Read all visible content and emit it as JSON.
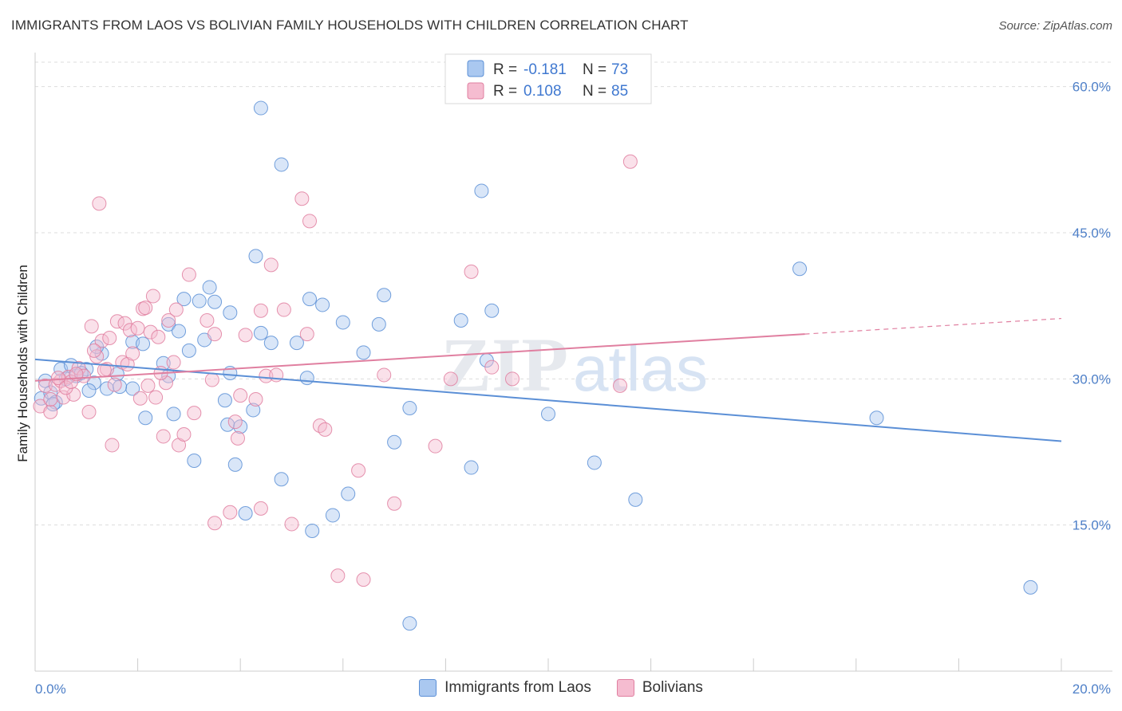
{
  "title": "IMMIGRANTS FROM LAOS VS BOLIVIAN FAMILY HOUSEHOLDS WITH CHILDREN CORRELATION CHART",
  "source": "Source: ZipAtlas.com",
  "watermark": {
    "zip": "ZIP",
    "atlas": "atlas"
  },
  "legend": {
    "r_label": "R =",
    "n_label": "N =",
    "rows": [
      {
        "r": "-0.181",
        "n": "73",
        "fill": "#aac8f0",
        "stroke": "#5b8fd6"
      },
      {
        "r": "0.108",
        "n": "85",
        "fill": "#f5bcd0",
        "stroke": "#e07fa0"
      }
    ]
  },
  "bottom_legend": [
    {
      "label": "Immigrants from Laos",
      "fill": "#aac8f0",
      "stroke": "#5b8fd6"
    },
    {
      "label": "Bolivians",
      "fill": "#f5bcd0",
      "stroke": "#e07fa0"
    }
  ],
  "chart_data": {
    "type": "scatter",
    "title": "IMMIGRANTS FROM LAOS VS BOLIVIAN FAMILY HOUSEHOLDS WITH CHILDREN CORRELATION CHART",
    "xlabel": "",
    "ylabel": "Family Households with Children",
    "xlim": [
      0,
      20
    ],
    "ylim": [
      0,
      63
    ],
    "x_tick_labels": [
      "0.0%",
      "20.0%"
    ],
    "y_ticks": [
      15,
      30,
      45,
      60
    ],
    "y_tick_labels": [
      "15.0%",
      "30.0%",
      "45.0%",
      "60.0%"
    ],
    "series": [
      {
        "name": "Immigrants from Laos",
        "color": "#5b8fd6",
        "fill": "#aac8f0",
        "trend": {
          "x": [
            0,
            20
          ],
          "y": [
            32.0,
            23.6
          ]
        },
        "points": [
          [
            0.12,
            28.0
          ],
          [
            0.2,
            29.8
          ],
          [
            0.3,
            28.6
          ],
          [
            0.4,
            27.6
          ],
          [
            0.5,
            31.0
          ],
          [
            0.6,
            30.0
          ],
          [
            0.7,
            31.4
          ],
          [
            0.8,
            30.3
          ],
          [
            1.0,
            31.0
          ],
          [
            1.15,
            29.6
          ],
          [
            1.3,
            32.6
          ],
          [
            1.4,
            29.0
          ],
          [
            1.6,
            30.5
          ],
          [
            1.9,
            29.0
          ],
          [
            1.05,
            28.8
          ],
          [
            1.2,
            33.3
          ],
          [
            1.9,
            33.8
          ],
          [
            2.1,
            33.6
          ],
          [
            2.15,
            26.0
          ],
          [
            2.5,
            31.6
          ],
          [
            2.6,
            30.3
          ],
          [
            2.6,
            35.6
          ],
          [
            2.7,
            26.4
          ],
          [
            2.8,
            34.9
          ],
          [
            2.9,
            38.2
          ],
          [
            3.0,
            32.9
          ],
          [
            3.1,
            21.6
          ],
          [
            3.2,
            38.0
          ],
          [
            3.4,
            39.4
          ],
          [
            3.5,
            37.9
          ],
          [
            3.7,
            27.8
          ],
          [
            3.75,
            25.3
          ],
          [
            3.8,
            30.6
          ],
          [
            3.9,
            21.2
          ],
          [
            3.8,
            36.8
          ],
          [
            4.0,
            25.1
          ],
          [
            4.1,
            16.2
          ],
          [
            4.4,
            34.7
          ],
          [
            4.3,
            42.6
          ],
          [
            4.25,
            26.8
          ],
          [
            4.4,
            57.8
          ],
          [
            4.6,
            33.7
          ],
          [
            4.8,
            19.7
          ],
          [
            4.8,
            52.0
          ],
          [
            5.1,
            33.7
          ],
          [
            5.3,
            30.1
          ],
          [
            5.35,
            38.2
          ],
          [
            5.4,
            14.4
          ],
          [
            5.6,
            37.6
          ],
          [
            5.8,
            16.0
          ],
          [
            6.0,
            35.8
          ],
          [
            6.1,
            18.2
          ],
          [
            6.4,
            32.7
          ],
          [
            6.7,
            35.6
          ],
          [
            6.8,
            38.6
          ],
          [
            7.0,
            23.5
          ],
          [
            7.3,
            27.0
          ],
          [
            7.3,
            4.9
          ],
          [
            8.3,
            36.0
          ],
          [
            8.5,
            20.9
          ],
          [
            8.7,
            49.3
          ],
          [
            8.8,
            31.9
          ],
          [
            8.9,
            37.0
          ],
          [
            10.0,
            26.4
          ],
          [
            10.9,
            21.4
          ],
          [
            11.7,
            17.6
          ],
          [
            14.9,
            41.3
          ],
          [
            16.4,
            26.0
          ],
          [
            19.4,
            8.6
          ],
          [
            3.3,
            34.0
          ],
          [
            0.35,
            27.4
          ],
          [
            1.65,
            29.2
          ],
          [
            0.9,
            30.6
          ]
        ]
      },
      {
        "name": "Bolivians",
        "color": "#e07fa0",
        "fill": "#f5bcd0",
        "trend": {
          "x": [
            0,
            15
          ],
          "y": [
            29.8,
            34.6
          ],
          "dash_to": {
            "x": 20,
            "y": 36.2
          }
        },
        "points": [
          [
            0.1,
            27.2
          ],
          [
            0.2,
            29.3
          ],
          [
            0.3,
            26.6
          ],
          [
            0.4,
            29.4
          ],
          [
            0.5,
            29.8
          ],
          [
            0.55,
            28.1
          ],
          [
            0.65,
            30.2
          ],
          [
            0.75,
            28.4
          ],
          [
            0.85,
            31.1
          ],
          [
            0.95,
            30.3
          ],
          [
            1.05,
            26.6
          ],
          [
            1.1,
            35.4
          ],
          [
            1.2,
            32.3
          ],
          [
            1.25,
            48.0
          ],
          [
            1.3,
            33.9
          ],
          [
            1.4,
            31.0
          ],
          [
            1.45,
            34.2
          ],
          [
            1.5,
            23.2
          ],
          [
            1.55,
            29.4
          ],
          [
            1.6,
            35.9
          ],
          [
            1.7,
            31.7
          ],
          [
            1.75,
            35.7
          ],
          [
            1.8,
            31.5
          ],
          [
            1.85,
            35.0
          ],
          [
            1.9,
            32.6
          ],
          [
            2.0,
            35.2
          ],
          [
            2.05,
            28.0
          ],
          [
            2.1,
            37.2
          ],
          [
            2.15,
            37.3
          ],
          [
            2.2,
            29.3
          ],
          [
            2.25,
            34.8
          ],
          [
            2.3,
            38.5
          ],
          [
            2.35,
            28.1
          ],
          [
            2.4,
            34.3
          ],
          [
            2.5,
            24.1
          ],
          [
            2.55,
            29.6
          ],
          [
            2.6,
            36.0
          ],
          [
            2.7,
            31.7
          ],
          [
            2.75,
            37.1
          ],
          [
            2.8,
            23.2
          ],
          [
            2.9,
            24.3
          ],
          [
            3.0,
            40.7
          ],
          [
            3.1,
            26.5
          ],
          [
            3.35,
            36.0
          ],
          [
            3.45,
            29.9
          ],
          [
            3.5,
            34.6
          ],
          [
            3.5,
            15.2
          ],
          [
            3.8,
            16.3
          ],
          [
            3.9,
            25.6
          ],
          [
            3.95,
            23.9
          ],
          [
            4.0,
            28.3
          ],
          [
            4.1,
            34.5
          ],
          [
            4.3,
            27.9
          ],
          [
            4.4,
            16.7
          ],
          [
            4.4,
            37.0
          ],
          [
            4.5,
            30.3
          ],
          [
            4.6,
            41.7
          ],
          [
            4.7,
            30.4
          ],
          [
            4.85,
            37.1
          ],
          [
            5.0,
            15.1
          ],
          [
            5.2,
            48.5
          ],
          [
            5.3,
            34.6
          ],
          [
            5.35,
            46.2
          ],
          [
            5.55,
            25.2
          ],
          [
            5.65,
            24.8
          ],
          [
            5.9,
            9.8
          ],
          [
            6.3,
            20.6
          ],
          [
            6.4,
            9.4
          ],
          [
            6.8,
            30.4
          ],
          [
            7.0,
            17.2
          ],
          [
            7.8,
            23.1
          ],
          [
            8.1,
            30.0
          ],
          [
            8.5,
            41.0
          ],
          [
            8.9,
            31.2
          ],
          [
            9.3,
            30.0
          ],
          [
            11.4,
            29.3
          ],
          [
            11.6,
            52.3
          ],
          [
            0.3,
            27.9
          ],
          [
            0.45,
            30.1
          ],
          [
            0.6,
            29.1
          ],
          [
            0.7,
            29.7
          ],
          [
            0.8,
            30.5
          ],
          [
            1.35,
            30.9
          ],
          [
            2.45,
            30.6
          ],
          [
            1.15,
            32.9
          ]
        ]
      }
    ]
  }
}
